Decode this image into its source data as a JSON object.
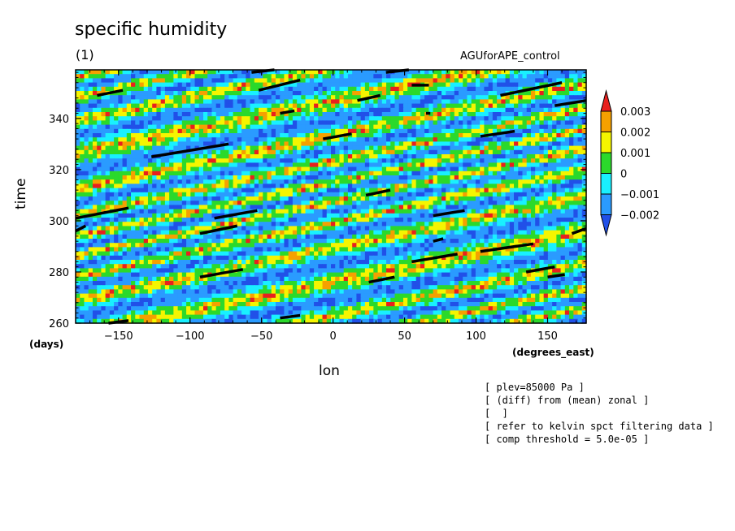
{
  "chart_data": {
    "type": "heatmap",
    "title": "specific humidity",
    "panel_label": "(1)",
    "experiment": "AGUforAPE_control",
    "xlabel": "lon",
    "ylabel": "time",
    "x_unit": "(degrees_east)",
    "y_unit": "(days)",
    "xlim": [
      -180,
      177
    ],
    "ylim": [
      260,
      359
    ],
    "x_ticks": [
      "-150",
      "-100",
      "-50",
      "0",
      "50",
      "100",
      "150"
    ],
    "x_tick_values": [
      -150,
      -100,
      -50,
      0,
      50,
      100,
      150
    ],
    "y_ticks": [
      "260",
      "280",
      "300",
      "320",
      "340"
    ],
    "y_tick_values": [
      260,
      280,
      300,
      320,
      340
    ],
    "colorbar": {
      "labels": [
        "0.003",
        "0.002",
        "0.001",
        "0",
        "-0.001",
        "-0.002"
      ],
      "levels": [
        0.003,
        0.002,
        0.001,
        0,
        -0.001,
        -0.002
      ],
      "colors": [
        "#e8201e",
        "#f5a000",
        "#f5f500",
        "#2bd92b",
        "#19f0ff",
        "#2a9bff",
        "#2150e8"
      ]
    },
    "background_levels": [
      "#2150e8",
      "#2a9bff",
      "#19f0ff",
      "#2bd92b",
      "#f5f500",
      "#f5a000",
      "#e8201e"
    ],
    "kelvin_segments": [
      {
        "lon": [
          -165,
          -147
        ],
        "time": [
          349,
          351
        ]
      },
      {
        "lon": [
          -52,
          -23
        ],
        "time": [
          351,
          355
        ]
      },
      {
        "lon": [
          -57,
          -41
        ],
        "time": [
          358,
          359
        ]
      },
      {
        "lon": [
          17,
          33
        ],
        "time": [
          347,
          349
        ]
      },
      {
        "lon": [
          55,
          67
        ],
        "time": [
          353,
          353
        ]
      },
      {
        "lon": [
          37,
          53
        ],
        "time": [
          358,
          359
        ]
      },
      {
        "lon": [
          117,
          160
        ],
        "time": [
          349,
          354
        ]
      },
      {
        "lon": [
          155,
          177
        ],
        "time": [
          345,
          347
        ]
      },
      {
        "lon": [
          -37,
          -27
        ],
        "time": [
          342,
          343
        ]
      },
      {
        "lon": [
          65,
          68
        ],
        "time": [
          342,
          342
        ]
      },
      {
        "lon": [
          -7,
          13
        ],
        "time": [
          332,
          334
        ]
      },
      {
        "lon": [
          103,
          127
        ],
        "time": [
          333,
          335
        ]
      },
      {
        "lon": [
          -127,
          -73
        ],
        "time": [
          325,
          330
        ]
      },
      {
        "lon": [
          23,
          40
        ],
        "time": [
          310,
          312
        ]
      },
      {
        "lon": [
          -180,
          -143
        ],
        "time": [
          301,
          305
        ]
      },
      {
        "lon": [
          -180,
          -173
        ],
        "time": [
          296,
          298
        ]
      },
      {
        "lon": [
          -83,
          -53
        ],
        "time": [
          301,
          304
        ]
      },
      {
        "lon": [
          -93,
          -67
        ],
        "time": [
          295,
          298
        ]
      },
      {
        "lon": [
          70,
          92
        ],
        "time": [
          302,
          304
        ]
      },
      {
        "lon": [
          70,
          77
        ],
        "time": [
          292,
          293
        ]
      },
      {
        "lon": [
          167,
          177
        ],
        "time": [
          295,
          297
        ]
      },
      {
        "lon": [
          55,
          87
        ],
        "time": [
          284,
          287
        ]
      },
      {
        "lon": [
          103,
          140
        ],
        "time": [
          288,
          291
        ]
      },
      {
        "lon": [
          -93,
          -63
        ],
        "time": [
          278,
          281
        ]
      },
      {
        "lon": [
          135,
          155
        ],
        "time": [
          280,
          282
        ]
      },
      {
        "lon": [
          150,
          162
        ],
        "time": [
          278,
          279
        ]
      },
      {
        "lon": [
          25,
          43
        ],
        "time": [
          276,
          278
        ]
      },
      {
        "lon": [
          -157,
          -143
        ],
        "time": [
          260,
          261
        ]
      },
      {
        "lon": [
          -37,
          -23
        ],
        "time": [
          262,
          263
        ]
      }
    ]
  },
  "notes": [
    "[ plev=85000 Pa ]",
    "[ (diff) from (mean) zonal ]",
    "[  ]",
    "[ refer to kelvin spct filtering data ]",
    "[ comp threshold = 5.0e-05 ]"
  ]
}
